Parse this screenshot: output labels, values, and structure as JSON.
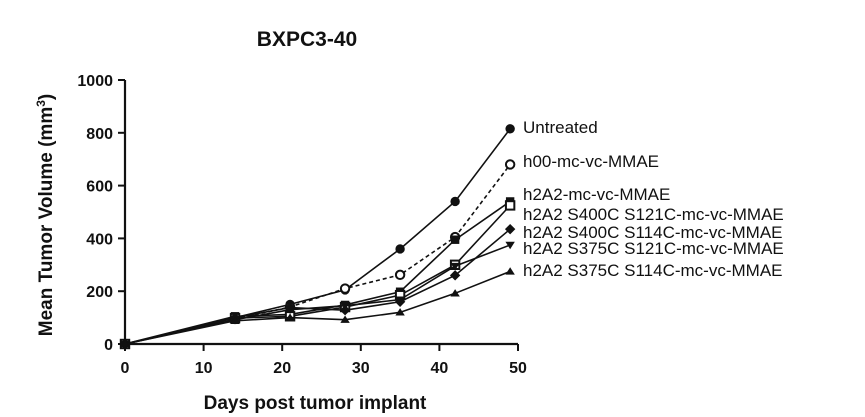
{
  "chart_data": {
    "type": "line",
    "title": "BXPC3-40",
    "xlabel": "Days post tumor implant",
    "ylabel": "Mean Tumor Volume (mm",
    "ylabel_superscript": "3",
    "ylabel_suffix": ")",
    "xlim": [
      0,
      50
    ],
    "ylim": [
      0,
      1000
    ],
    "xticks": [
      0,
      10,
      20,
      30,
      40,
      50
    ],
    "yticks": [
      0,
      200,
      400,
      600,
      800,
      1000
    ],
    "grid": false,
    "legend": "right-of-line-ends",
    "series": [
      {
        "name": "Untreated",
        "marker": "circle-filled",
        "dash": false,
        "x": [
          0,
          14,
          21,
          28,
          35,
          42,
          49
        ],
        "y": [
          0,
          100,
          150,
          205,
          360,
          540,
          815
        ]
      },
      {
        "name": "h00-mc-vc-MMAE",
        "marker": "circle-open",
        "dash": true,
        "x": [
          0,
          14,
          21,
          28,
          35,
          42,
          49
        ],
        "y": [
          0,
          95,
          140,
          210,
          262,
          405,
          680
        ]
      },
      {
        "name": "h2A2-mc-vc-MMAE",
        "marker": "square-filled",
        "dash": false,
        "x": [
          0,
          14,
          21,
          28,
          35,
          42,
          49
        ],
        "y": [
          0,
          105,
          112,
          148,
          198,
          395,
          540
        ]
      },
      {
        "name": "h2A2 S400C S121C-mc-vc-MMAE",
        "marker": "square-open",
        "dash": false,
        "x": [
          0,
          14,
          21,
          28,
          35,
          42,
          49
        ],
        "y": [
          0,
          98,
          105,
          140,
          185,
          300,
          525
        ]
      },
      {
        "name": "h2A2 S400C S114C-mc-vc-MMAE",
        "marker": "diamond-filled",
        "dash": false,
        "x": [
          0,
          14,
          21,
          28,
          35,
          42,
          49
        ],
        "y": [
          0,
          100,
          138,
          128,
          160,
          260,
          435
        ]
      },
      {
        "name": "h2A2 S375C S121C-mc-vc-MMAE",
        "marker": "triangle-down-filled",
        "dash": false,
        "x": [
          0,
          14,
          21,
          28,
          35,
          42,
          49
        ],
        "y": [
          0,
          92,
          130,
          145,
          168,
          295,
          375
        ]
      },
      {
        "name": "h2A2 S375C S114C-mc-vc-MMAE",
        "marker": "triangle-up-filled",
        "dash": false,
        "x": [
          0,
          14,
          21,
          28,
          35,
          42,
          49
        ],
        "y": [
          0,
          88,
          100,
          92,
          120,
          192,
          275
        ]
      }
    ]
  }
}
